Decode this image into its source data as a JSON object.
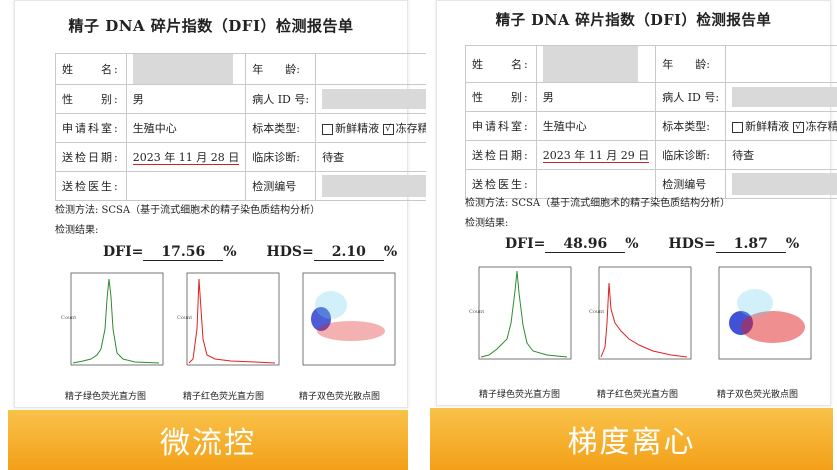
{
  "colors": {
    "banner": "#f3a018",
    "green": "#2e8b2e",
    "red": "#e02020",
    "blue": "#2233cc"
  },
  "common": {
    "title": "精子 DNA 碎片指数（DFI）检测报告单",
    "labels": {
      "name": "姓　　名:",
      "age": "年　　龄:",
      "gender": "性　　别:",
      "patient_id": "病人 ID 号:",
      "dept": "申请科室:",
      "sample_type": "标本类型:",
      "date": "送检日期:",
      "diagnosis": "临床诊断:",
      "doctor": "送检医生:",
      "test_no": "检测编号"
    },
    "gender": "男",
    "dept": "生殖中心",
    "sample_fresh": "新鲜精液",
    "sample_frozen": "冻存精液",
    "diagnosis": "待查",
    "method": "检测方法: SCSA（基于流式细胞术的精子染色质结构分析）",
    "result_label": "检测结果:",
    "dfi_label": "DFI=",
    "hds_label": "HDS=",
    "percent": "%",
    "captions": [
      "精子绿色荧光直方图",
      "精子红色荧光直方图",
      "精子双色荧光散点图"
    ],
    "check": "√"
  },
  "left": {
    "date": "2023 年 11 月 28 日",
    "dfi": "17.56",
    "hds": "2.10",
    "banner": "微流控"
  },
  "right": {
    "date": "2023 年 11 月 29 日",
    "dfi": "48.96",
    "hds": "1.87",
    "banner": "梯度离心"
  }
}
